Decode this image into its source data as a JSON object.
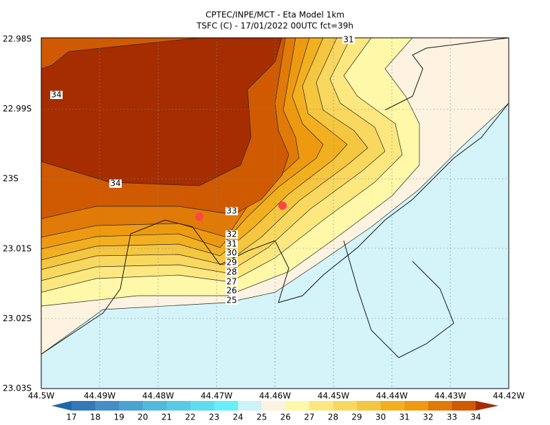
{
  "title": [
    "CPTEC/INPE/MCT -  Eta Model 1km",
    "TSFC (C) - 17/01/2022 00UTC fct=39h"
  ],
  "y_axis": {
    "labels": [
      "22.98S",
      "22.99S",
      "23S",
      "23.01S",
      "23.02S",
      "23.03S"
    ]
  },
  "x_axis": {
    "labels": [
      "44.5W",
      "44.49W",
      "44.48W",
      "44.47W",
      "44.46W",
      "44.45W",
      "44.44W",
      "44.43W",
      "44.42W"
    ]
  },
  "colorbar": {
    "labels": [
      "17",
      "18",
      "19",
      "20",
      "21",
      "22",
      "23",
      "24",
      "25",
      "26",
      "27",
      "28",
      "29",
      "30",
      "31",
      "32",
      "33",
      "34"
    ],
    "colors": [
      "#2166ac",
      "#3478b8",
      "#438ec6",
      "#4ba3d2",
      "#52b8dc",
      "#58cae6",
      "#5edcf0",
      "#66eefa",
      "#ccf2fa",
      "#fdf3e0",
      "#fff8a8",
      "#fde880",
      "#f9d860",
      "#f5c640",
      "#f2b020",
      "#ee9a10",
      "#e07a08",
      "#d05a02",
      "#a52d00"
    ]
  },
  "contour_labels": [
    "31",
    "34",
    "34",
    "33",
    "32",
    "31",
    "30",
    "29",
    "28",
    "27",
    "26",
    "25"
  ]
}
